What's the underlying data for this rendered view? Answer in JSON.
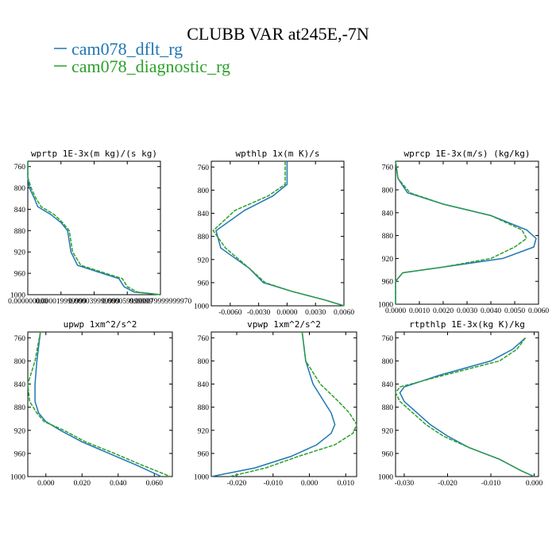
{
  "figure": {
    "title": "CLUBB VAR at245E,-7N",
    "legend": [
      {
        "label": "cam078_dflt_rg",
        "color": "#1f77b4"
      },
      {
        "label": "cam078_diagnostic_rg",
        "color": "#2ca02c"
      }
    ]
  },
  "chart_data": [
    {
      "type": "line",
      "title": "wprtp  1E-3x(m kg)/(s kg)",
      "xlim": [
        0.0,
        8e-05
      ],
      "ylim": [
        1000,
        750
      ],
      "xticks": [
        0.0,
        2e-05,
        4e-05,
        6e-05,
        8e-05
      ],
      "xtick_labels": [
        "0.000000000",
        "0.000019999999",
        "0.000039999999",
        "0.000059999999",
        "0.000079999999970"
      ],
      "yticks": [
        760,
        800,
        840,
        880,
        920,
        960,
        1000
      ],
      "series": [
        {
          "name": "cam078_dflt_rg",
          "color": "#1f77b4",
          "points": [
            [
              0.0,
              750
            ],
            [
              0.0,
              780
            ],
            [
              1e-06,
              800
            ],
            [
              4e-06,
              820
            ],
            [
              6e-06,
              835
            ],
            [
              1.4e-05,
              850
            ],
            [
              2e-05,
              865
            ],
            [
              2.4e-05,
              880
            ],
            [
              2.5e-05,
              900
            ],
            [
              2.6e-05,
              920
            ],
            [
              3e-05,
              945
            ],
            [
              4.5e-05,
              960
            ],
            [
              5.5e-05,
              970
            ],
            [
              5.8e-05,
              985
            ],
            [
              6.4e-05,
              995
            ],
            [
              8e-05,
              1000
            ]
          ]
        },
        {
          "name": "cam078_diagnostic_rg",
          "color": "#2ca02c",
          "points": [
            [
              0.0,
              750
            ],
            [
              0.0,
              780
            ],
            [
              2e-06,
              800
            ],
            [
              5e-06,
              820
            ],
            [
              8e-06,
              835
            ],
            [
              1.6e-05,
              850
            ],
            [
              2.1e-05,
              865
            ],
            [
              2.5e-05,
              880
            ],
            [
              2.6e-05,
              900
            ],
            [
              2.7e-05,
              920
            ],
            [
              3.2e-05,
              945
            ],
            [
              4.7e-05,
              960
            ],
            [
              5.7e-05,
              970
            ],
            [
              6e-05,
              985
            ],
            [
              6.6e-05,
              995
            ],
            [
              8e-05,
              1000
            ]
          ]
        }
      ]
    },
    {
      "type": "line",
      "title": "wpthlp  1x(m K)/s",
      "xlim": [
        -0.008,
        0.006
      ],
      "ylim": [
        1000,
        750
      ],
      "xticks": [
        -0.006,
        -0.003,
        0.0,
        0.003,
        0.006
      ],
      "xtick_labels": [
        "-0.0060",
        "-0.0030",
        "0.0000",
        "0.0030",
        "0.0060"
      ],
      "yticks": [
        760,
        800,
        840,
        880,
        920,
        960,
        1000
      ],
      "series": [
        {
          "name": "cam078_dflt_rg",
          "color": "#1f77b4",
          "points": [
            [
              0.0,
              750
            ],
            [
              0.0,
              790
            ],
            [
              -0.0015,
              810
            ],
            [
              -0.0045,
              835
            ],
            [
              -0.0075,
              870
            ],
            [
              -0.007,
              900
            ],
            [
              -0.004,
              935
            ],
            [
              -0.0025,
              960
            ],
            [
              0.0005,
              975
            ],
            [
              0.004,
              990
            ],
            [
              0.006,
              1000
            ]
          ]
        },
        {
          "name": "cam078_diagnostic_rg",
          "color": "#2ca02c",
          "points": [
            [
              -0.0002,
              750
            ],
            [
              -0.0002,
              790
            ],
            [
              -0.002,
              810
            ],
            [
              -0.0055,
              835
            ],
            [
              -0.0078,
              870
            ],
            [
              -0.0065,
              900
            ],
            [
              -0.004,
              935
            ],
            [
              -0.0023,
              960
            ],
            [
              0.0005,
              975
            ],
            [
              0.004,
              990
            ],
            [
              0.006,
              1000
            ]
          ]
        }
      ]
    },
    {
      "type": "line",
      "title": "wprcp  1E-3x(m/s) (kg/kg)",
      "xlim": [
        0.0,
        0.006
      ],
      "ylim": [
        1000,
        750
      ],
      "xticks": [
        0.0,
        0.001,
        0.002,
        0.003,
        0.004,
        0.005,
        0.006
      ],
      "xtick_labels": [
        "0.0000",
        "0.0010",
        "0.0020",
        "0.0030",
        "0.0040",
        "0.0050",
        "0.0060"
      ],
      "yticks": [
        760,
        800,
        840,
        880,
        920,
        960,
        1000
      ],
      "series": [
        {
          "name": "cam078_dflt_rg",
          "color": "#1f77b4",
          "points": [
            [
              0.0,
              750
            ],
            [
              0.0001,
              780
            ],
            [
              0.0005,
              805
            ],
            [
              0.002,
              825
            ],
            [
              0.004,
              845
            ],
            [
              0.0055,
              870
            ],
            [
              0.0059,
              885
            ],
            [
              0.0058,
              900
            ],
            [
              0.0045,
              920
            ],
            [
              0.002,
              935
            ],
            [
              0.0003,
              945
            ],
            [
              0.0,
              960
            ],
            [
              0.0,
              1000
            ]
          ]
        },
        {
          "name": "cam078_diagnostic_rg",
          "color": "#2ca02c",
          "points": [
            [
              0.0,
              750
            ],
            [
              0.0001,
              780
            ],
            [
              0.0006,
              805
            ],
            [
              0.002,
              825
            ],
            [
              0.004,
              845
            ],
            [
              0.0053,
              870
            ],
            [
              0.0055,
              885
            ],
            [
              0.005,
              900
            ],
            [
              0.004,
              920
            ],
            [
              0.002,
              935
            ],
            [
              0.0003,
              945
            ],
            [
              0.0,
              960
            ],
            [
              0.0,
              1000
            ]
          ]
        }
      ]
    },
    {
      "type": "line",
      "title": "upwp  1xm^2/s^2",
      "xlim": [
        -0.01,
        0.07
      ],
      "ylim": [
        1000,
        750
      ],
      "xticks": [
        0.0,
        0.02,
        0.04,
        0.06
      ],
      "xtick_labels": [
        "0.000",
        "0.020",
        "0.040",
        "0.060"
      ],
      "yticks": [
        760,
        800,
        840,
        880,
        920,
        960,
        1000
      ],
      "series": [
        {
          "name": "cam078_dflt_rg",
          "color": "#1f77b4",
          "points": [
            [
              -0.003,
              750
            ],
            [
              -0.005,
              800
            ],
            [
              -0.006,
              840
            ],
            [
              -0.006,
              870
            ],
            [
              -0.004,
              890
            ],
            [
              0.0,
              905
            ],
            [
              0.008,
              920
            ],
            [
              0.02,
              940
            ],
            [
              0.035,
              960
            ],
            [
              0.05,
              980
            ],
            [
              0.064,
              1000
            ]
          ]
        },
        {
          "name": "cam078_diagnostic_rg",
          "color": "#2ca02c",
          "points": [
            [
              -0.003,
              750
            ],
            [
              -0.006,
              800
            ],
            [
              -0.01,
              840
            ],
            [
              -0.009,
              870
            ],
            [
              -0.005,
              890
            ],
            [
              -0.001,
              905
            ],
            [
              0.01,
              920
            ],
            [
              0.022,
              940
            ],
            [
              0.038,
              960
            ],
            [
              0.053,
              980
            ],
            [
              0.069,
              1000
            ]
          ]
        }
      ]
    },
    {
      "type": "line",
      "title": "vpwp  1xm^2/s^2",
      "xlim": [
        -0.027,
        0.013
      ],
      "ylim": [
        1000,
        750
      ],
      "xticks": [
        -0.02,
        -0.01,
        0.0,
        0.01
      ],
      "xtick_labels": [
        "-0.020",
        "-0.010",
        "0.000",
        "0.010"
      ],
      "yticks": [
        760,
        800,
        840,
        880,
        920,
        960,
        1000
      ],
      "series": [
        {
          "name": "cam078_dflt_rg",
          "color": "#1f77b4",
          "points": [
            [
              -0.002,
              750
            ],
            [
              -0.001,
              800
            ],
            [
              0.001,
              840
            ],
            [
              0.004,
              870
            ],
            [
              0.006,
              890
            ],
            [
              0.007,
              910
            ],
            [
              0.006,
              925
            ],
            [
              0.002,
              945
            ],
            [
              -0.005,
              965
            ],
            [
              -0.015,
              985
            ],
            [
              -0.027,
              1000
            ]
          ]
        },
        {
          "name": "cam078_diagnostic_rg",
          "color": "#2ca02c",
          "points": [
            [
              -0.002,
              750
            ],
            [
              -0.001,
              800
            ],
            [
              0.003,
              840
            ],
            [
              0.008,
              870
            ],
            [
              0.011,
              890
            ],
            [
              0.013,
              910
            ],
            [
              0.012,
              925
            ],
            [
              0.007,
              945
            ],
            [
              -0.003,
              965
            ],
            [
              -0.012,
              985
            ],
            [
              -0.022,
              1000
            ]
          ]
        }
      ]
    },
    {
      "type": "line",
      "title": "rtpthlp  1E-3x(kg K)/kg",
      "xlim": [
        -0.032,
        0.001
      ],
      "ylim": [
        1000,
        750
      ],
      "xticks": [
        -0.03,
        -0.02,
        -0.01,
        0.0
      ],
      "xtick_labels": [
        "-0.030",
        "-0.020",
        "-0.010",
        "0.000"
      ],
      "yticks": [
        760,
        800,
        840,
        880,
        920,
        960,
        1000
      ],
      "series": [
        {
          "name": "cam078_dflt_rg",
          "color": "#1f77b4",
          "points": [
            [
              -0.002,
              760
            ],
            [
              -0.005,
              780
            ],
            [
              -0.01,
              800
            ],
            [
              -0.022,
              825
            ],
            [
              -0.03,
              845
            ],
            [
              -0.031,
              855
            ],
            [
              -0.03,
              870
            ],
            [
              -0.027,
              890
            ],
            [
              -0.024,
              910
            ],
            [
              -0.02,
              930
            ],
            [
              -0.015,
              950
            ],
            [
              -0.008,
              970
            ],
            [
              -0.003,
              990
            ],
            [
              0.0,
              1000
            ]
          ]
        },
        {
          "name": "cam078_diagnostic_rg",
          "color": "#2ca02c",
          "points": [
            [
              -0.002,
              760
            ],
            [
              -0.004,
              780
            ],
            [
              -0.008,
              800
            ],
            [
              -0.021,
              825
            ],
            [
              -0.031,
              845
            ],
            [
              -0.032,
              855
            ],
            [
              -0.031,
              870
            ],
            [
              -0.028,
              890
            ],
            [
              -0.025,
              910
            ],
            [
              -0.021,
              930
            ],
            [
              -0.015,
              950
            ],
            [
              -0.008,
              970
            ],
            [
              -0.003,
              990
            ],
            [
              0.0,
              1000
            ]
          ]
        }
      ]
    }
  ]
}
